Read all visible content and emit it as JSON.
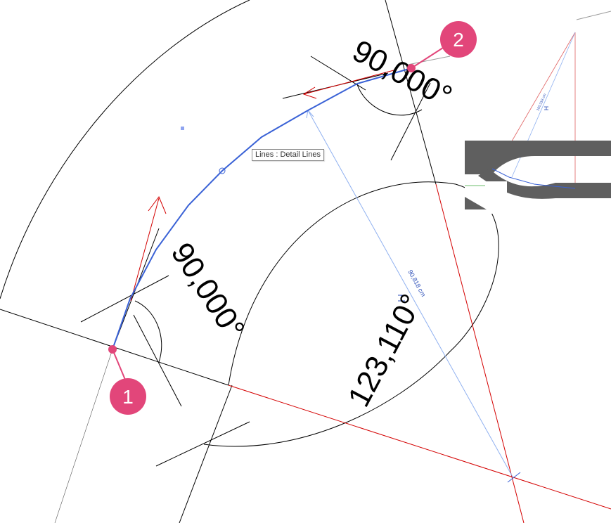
{
  "tooltip": {
    "text": "Lines : Detail Lines"
  },
  "dimensions": {
    "angle_start": "90,000°",
    "angle_end": "90,000°",
    "arc_angle": "123,110°",
    "chord_length": "90,818 cm",
    "inset_length": "100,318 cm"
  },
  "markers": [
    {
      "label": "1"
    },
    {
      "label": "2"
    }
  ],
  "colors": {
    "background": "#ffffff",
    "line_black": "#000000",
    "line_red": "#d40000",
    "line_blue_selected": "#3a62d6",
    "line_blue_light": "#8fb0f0",
    "marker_pink": "#e2467a",
    "wall_gray": "#5f5f5f"
  }
}
